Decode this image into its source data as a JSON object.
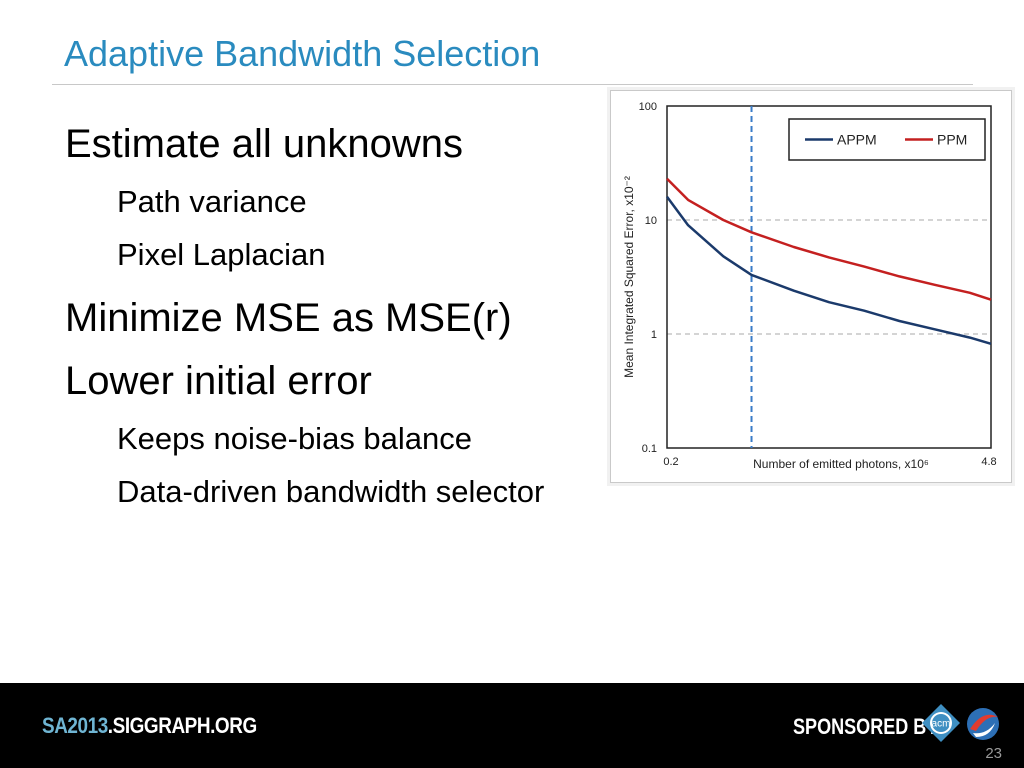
{
  "slide": {
    "title": "Adaptive Bandwidth Selection",
    "bullets": [
      {
        "level": 1,
        "text": "Estimate all unknowns"
      },
      {
        "level": 2,
        "text": "Path variance"
      },
      {
        "level": 2,
        "text": "Pixel Laplacian"
      },
      {
        "level": 1,
        "text": "Minimize MSE as MSE(r)"
      },
      {
        "level": 1,
        "text": "Lower initial error"
      },
      {
        "level": 2,
        "text": "Keeps noise-bias balance"
      },
      {
        "level": 2,
        "text": "Data-driven bandwidth selector"
      }
    ],
    "page_number": "23"
  },
  "footer": {
    "site_prefix": "SA2013",
    "site_domain": ".SIGGRAPH.ORG",
    "sponsored_label": "SPONSORED BY",
    "acm_logo_text": "acm"
  },
  "chart_data": {
    "type": "line",
    "title": "",
    "xlabel": "Number of emitted photons, x10⁶",
    "ylabel": "Mean Integrated Squared Error, x10⁻²",
    "xlim": [
      0.2,
      4.8
    ],
    "ylim": [
      0.1,
      100
    ],
    "yscale": "log",
    "x_tick_labels": [
      "0.2",
      "4.8"
    ],
    "y_tick_labels": [
      "100",
      "10",
      "1",
      "0.1"
    ],
    "y_ticks": [
      100,
      10,
      1,
      0.1
    ],
    "grid": "horizontal dashed",
    "legend_position": "top-right",
    "marker_line_x": 1.4,
    "colors": {
      "APPM": "#1b3a6b",
      "PPM": "#c42020",
      "marker": "#3a7cc8"
    },
    "series": [
      {
        "name": "APPM",
        "x": [
          0.2,
          0.5,
          1.0,
          1.4,
          2.0,
          2.5,
          3.0,
          3.5,
          4.0,
          4.5,
          4.8
        ],
        "y": [
          16,
          9.0,
          4.8,
          3.3,
          2.4,
          1.9,
          1.6,
          1.3,
          1.1,
          0.93,
          0.82
        ]
      },
      {
        "name": "PPM",
        "x": [
          0.2,
          0.5,
          1.0,
          1.4,
          2.0,
          2.5,
          3.0,
          3.5,
          4.0,
          4.5,
          4.8
        ],
        "y": [
          23,
          15,
          10,
          7.8,
          5.8,
          4.7,
          3.9,
          3.2,
          2.7,
          2.3,
          2.0
        ]
      }
    ]
  }
}
